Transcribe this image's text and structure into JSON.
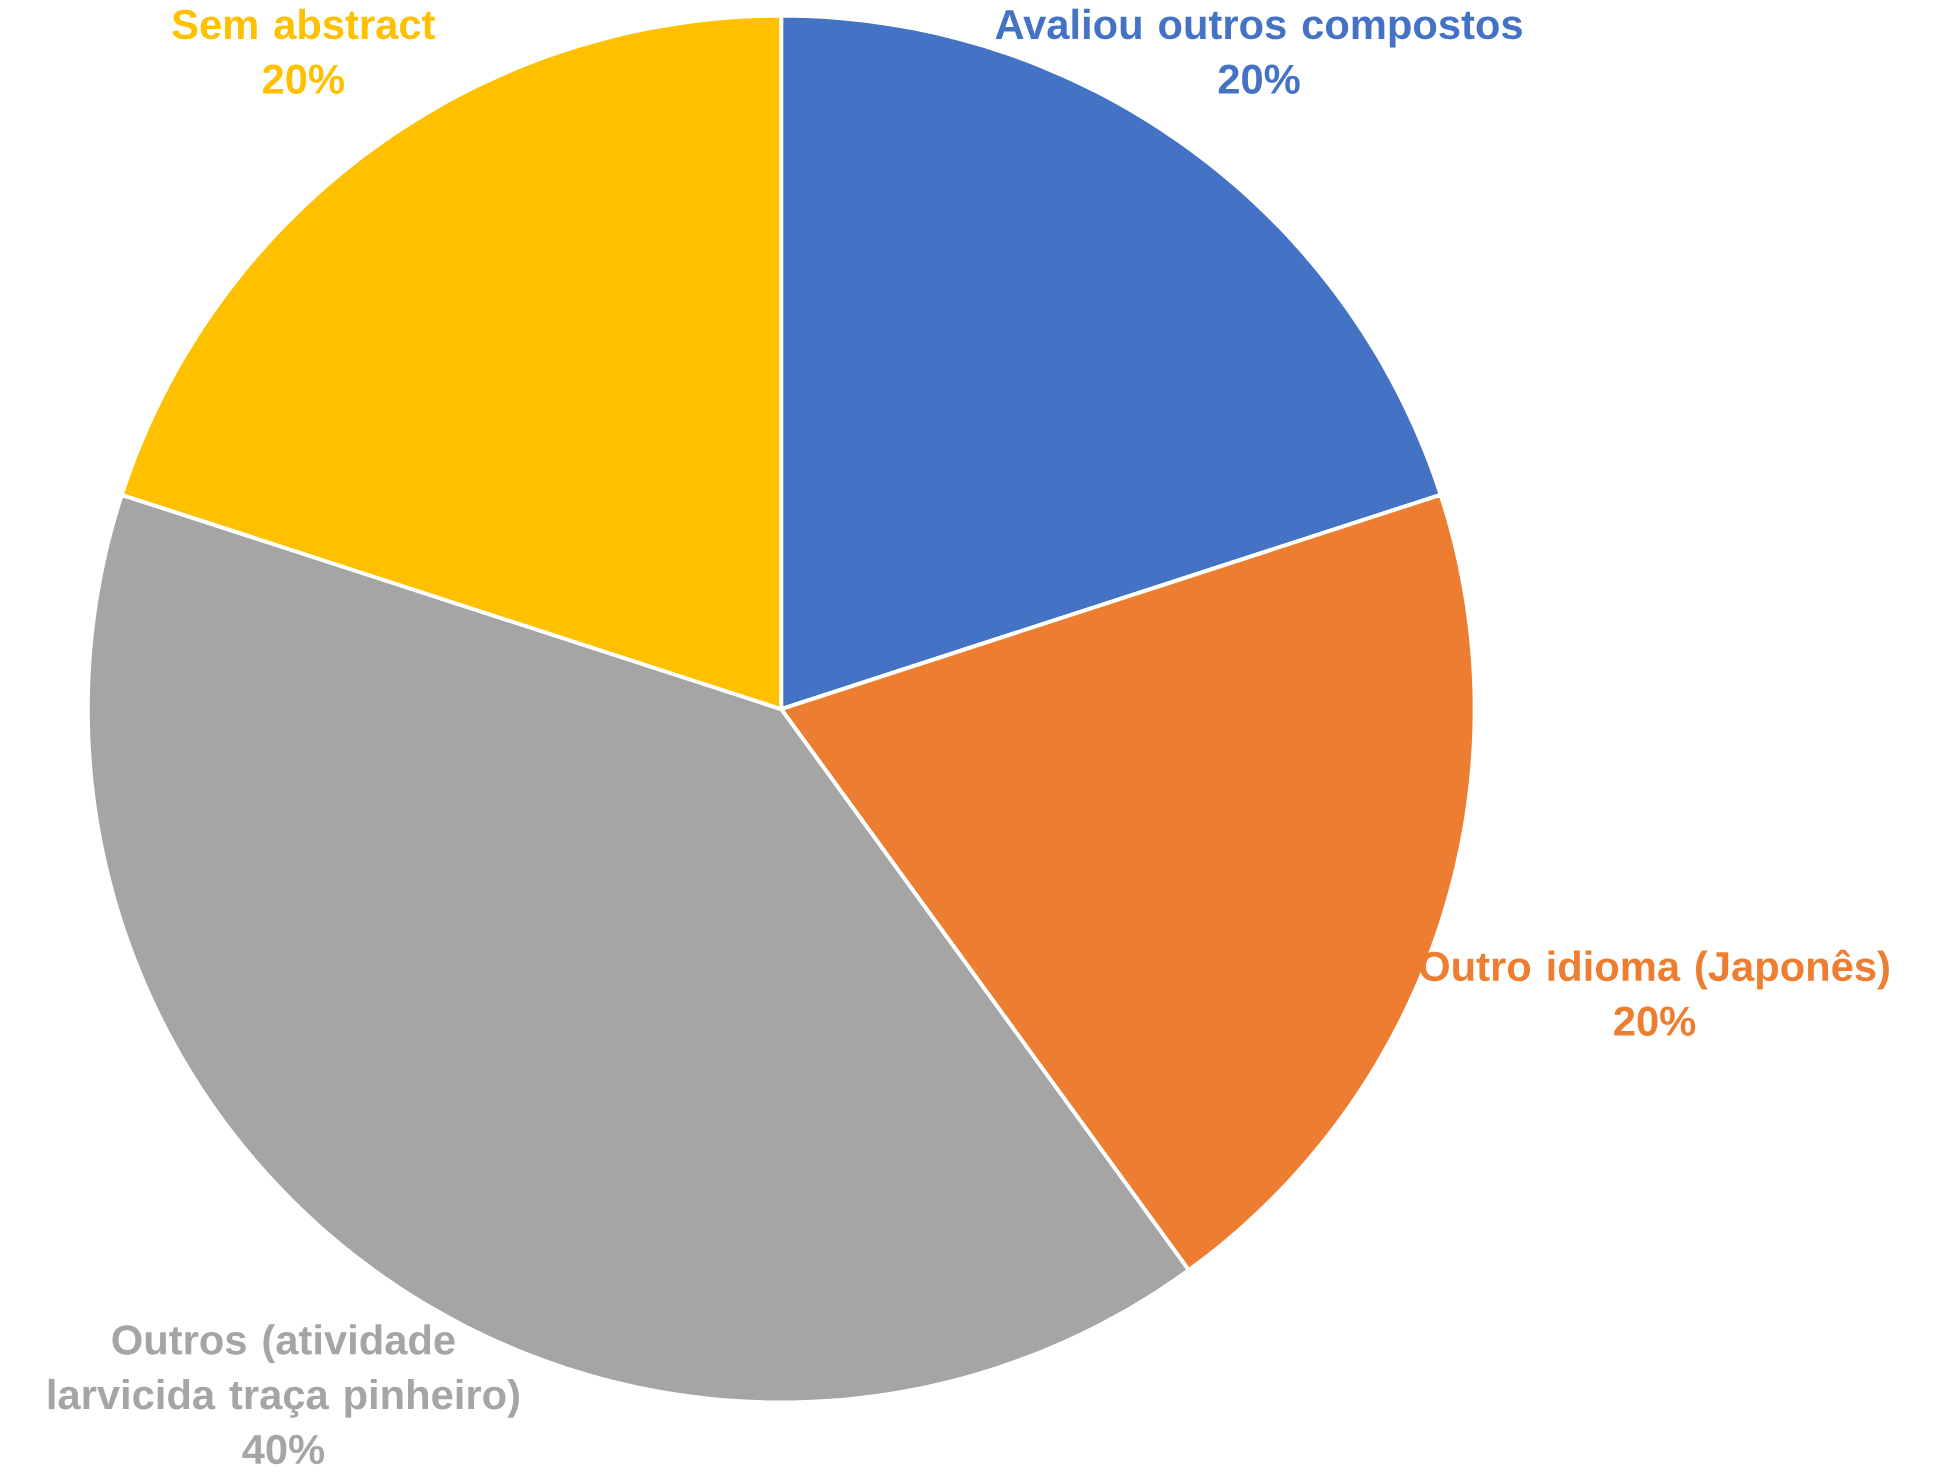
{
  "chart_data": {
    "type": "pie",
    "categories": [
      "Avaliou outros compostos",
      "Outro idioma (Japonês)",
      "Outros (atividade larvicida traça pinheiro)",
      "Sem abstract"
    ],
    "values": [
      20,
      20,
      40,
      20
    ],
    "value_labels": [
      "20%",
      "20%",
      "40%",
      "20%"
    ],
    "colors": [
      "#4472c4",
      "#ed7d31",
      "#a5a5a5",
      "#ffc000"
    ]
  }
}
